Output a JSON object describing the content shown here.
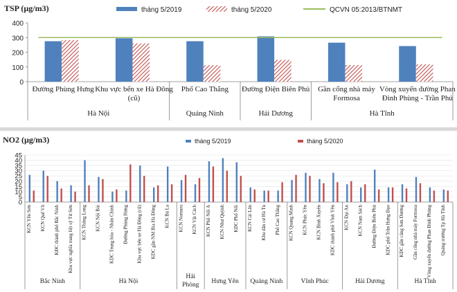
{
  "chart_data": [
    {
      "type": "bar",
      "title": "TSP (µg/m3)",
      "ylim": [
        0,
        400
      ],
      "yticks": [
        0,
        100,
        200,
        300,
        400
      ],
      "legend": [
        "tháng 5/2019",
        "tháng 5/2020",
        "QCVN 05:2013/BTNMT"
      ],
      "colors": {
        "y2019": "#4f81bd",
        "y2020": "#c0504d",
        "limit": "#9bbb59"
      },
      "standard_limit": 300,
      "categories": [
        "Đường Phùng Hưng",
        "Khu vực bến xe Hà Đông (cũ)",
        "Phố Cao Thắng",
        "Đường Điện Biên Phủ",
        "Gần cổng nhà máy Formosa",
        "Vòng xuyến đường Phan Đình Phùng - Trần Phú"
      ],
      "series": [
        {
          "name": "tháng 5/2019",
          "values": [
            275,
            295,
            275,
            308,
            265,
            242
          ]
        },
        {
          "name": "tháng 5/2020",
          "values": [
            283,
            260,
            112,
            148,
            113,
            118
          ]
        }
      ],
      "groups": [
        {
          "name": "Hà Nội",
          "count": 2
        },
        {
          "name": "Quảng Ninh",
          "count": 1
        },
        {
          "name": "Hải Dương",
          "count": 1
        },
        {
          "name": "Hà Tĩnh",
          "count": 2
        }
      ]
    },
    {
      "type": "bar",
      "title": "NO2 (µg/m3)",
      "ylim": [
        0,
        45
      ],
      "yticks": [
        0,
        5,
        10,
        15,
        20,
        25,
        30,
        35,
        40,
        45
      ],
      "legend": [
        "tháng 5/2019",
        "tháng 5/2020"
      ],
      "categories": [
        "KCN Yên Sơn",
        "KCN Quế Võ",
        "KĐC thành phố Bắc Ninh",
        "Khu vực nghĩa trang liệt sỹ Từ Sơn",
        "KCN Thăng Long",
        "KCN Nội Bài",
        "KDC Trung hòa - Nhân Chính",
        "Đường Phùng Hưng",
        "Khu vực bến xe Hà Đông (cũ)",
        "KDC gần NM Bia Hà Đông",
        "KCN Bá La",
        "KCN Nomura",
        "KCN Vật Cách",
        "KCN Phố Nối A",
        "KCN Như Quỳnh",
        "KDC Phố Nối",
        "KCN Cái Lân",
        "Khu dân cư Hà Tu",
        "Phố Cao Thắng",
        "KCN Quang Minh",
        "KCN Phúc Yên",
        "KCN Bình Xuyên",
        "KDC thành phố Vĩnh Yên",
        "KCN Đại An",
        "KCN Nam Sách",
        "Đường Điện Biên Phủ",
        "KDC phố Trần Hưng Đạo",
        "KDC gần cảng Sơn Dương",
        "Gần cổng nhà máy Formosa",
        "Vòng xuyến đường Phan Đình Phùng",
        "Quảng trường Tp Hà Tĩnh"
      ],
      "series": [
        {
          "name": "tháng 5/2019",
          "values": [
            26,
            30,
            20,
            16,
            40,
            24,
            10,
            11,
            35,
            14,
            34,
            21,
            17,
            39,
            42,
            38,
            14,
            11,
            11,
            21,
            28,
            22,
            28,
            17,
            14,
            31,
            14,
            17,
            24,
            14,
            12
          ]
        },
        {
          "name": "tháng 5/2020",
          "values": [
            11,
            25,
            13,
            10,
            16,
            22,
            12,
            36,
            25,
            16,
            17,
            26,
            23,
            34,
            30,
            25,
            12,
            11,
            19,
            26,
            25,
            18,
            19,
            20,
            17,
            12,
            14,
            13,
            18,
            11,
            11
          ]
        }
      ],
      "groups": [
        {
          "name": "Bắc Ninh",
          "count": 4
        },
        {
          "name": "Hà Nội",
          "count": 7
        },
        {
          "name": "Hải Phòng",
          "count": 2
        },
        {
          "name": "Hưng Yên",
          "count": 3
        },
        {
          "name": "Quảng Ninh",
          "count": 3
        },
        {
          "name": "Vĩnh Phúc",
          "count": 4
        },
        {
          "name": "Hải Dương",
          "count": 4
        },
        {
          "name": "Hà Tĩnh",
          "count": 4
        }
      ]
    }
  ]
}
